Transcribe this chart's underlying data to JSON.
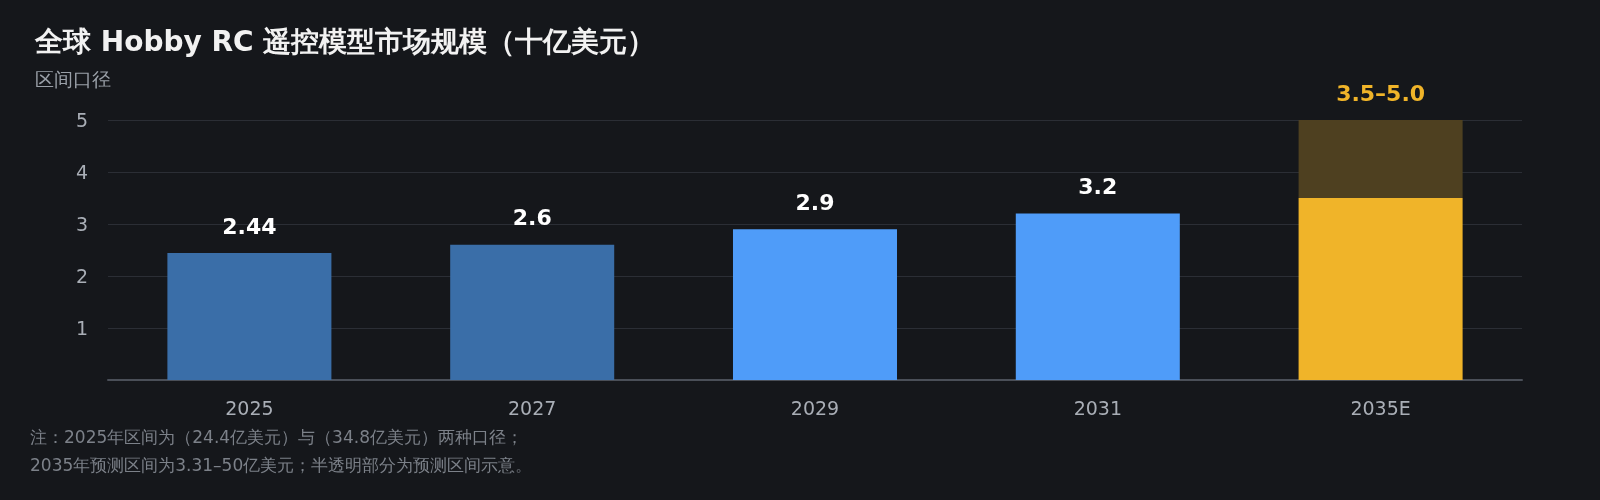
{
  "chart_data": {
    "type": "bar",
    "title": "全球 Hobby RC 遥控模型市场规模（十亿美元）",
    "subtitle": "区间口径",
    "categories": [
      "2025",
      "2027",
      "2029",
      "2031",
      "2035E"
    ],
    "stacked": true,
    "series": [
      {
        "colors": [
          "#3a6ea8",
          "#3a6ea8",
          "#4f9cf9",
          "#4f9cf9",
          "#f0b429"
        ],
        "values": [
          2.44,
          2.6,
          2.9,
          3.2,
          3.5
        ],
        "value_labels": [
          "2.44",
          "2.6",
          "2.9",
          "3.2",
          null
        ]
      },
      {
        "color": "#4e4020",
        "values": [
          null,
          null,
          null,
          null,
          1.5
        ],
        "value_labels": [
          null,
          null,
          null,
          null,
          "3.5–5.0"
        ]
      }
    ],
    "ylim": [
      0,
      5
    ],
    "yticks": [
      1,
      2,
      3,
      4,
      5
    ],
    "grid": "y",
    "annotations": [
      "注：2025年区间为（24.4亿美元）与（34.8亿美元）两种口径；",
      "2035年预测区间为3.31–50亿美元；半透明部分为预测区间示意。"
    ]
  }
}
